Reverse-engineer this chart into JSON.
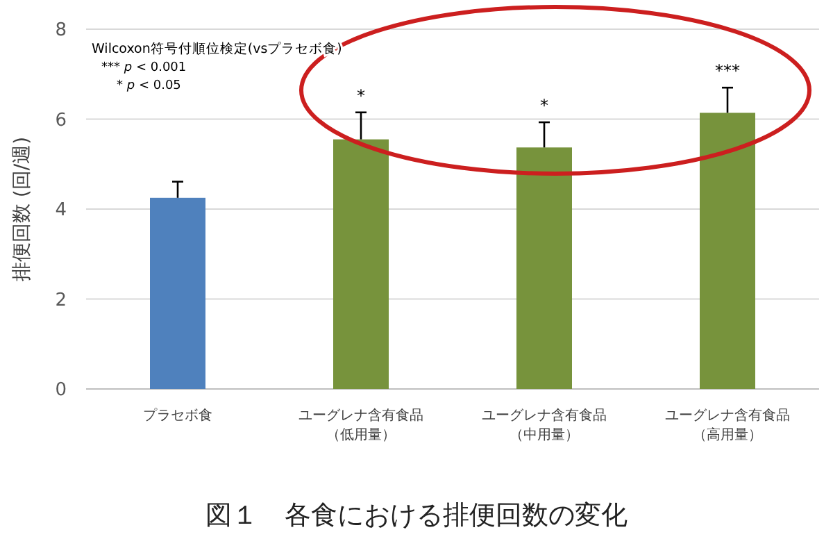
{
  "chart_data": {
    "type": "bar",
    "title": "図１　各食における排便回数の変化",
    "ylabel": "排便回数 (回/週)",
    "categories": [
      "プラセボ食",
      "ユーグレナ含有食品（低用量）",
      "ユーグレナ含有食品（中用量）",
      "ユーグレナ含有食品（高用量）"
    ],
    "values": [
      4.25,
      5.55,
      5.37,
      6.14
    ],
    "colors": [
      "#4f81bd",
      "#77933c",
      "#77933c",
      "#77933c"
    ],
    "errors": [
      0.36,
      0.6,
      0.56,
      0.56
    ],
    "ylim": [
      0,
      8
    ],
    "yticks": [
      0,
      2,
      4,
      6,
      8
    ],
    "grid": "y",
    "annotations": [
      "Wilcoxon符号付順位検定(vsプラセボ食)",
      "*** p < 0.001",
      "* p < 0.05",
      {
        "text": "*",
        "x": "ユーグレナ含有食品（低用量）",
        "y": 6.15
      },
      {
        "text": "*",
        "x": "ユーグレナ含有食品（中用量）",
        "y": 5.93
      },
      {
        "text": "***",
        "x": "ユーグレナ含有食品（高用量）",
        "y": 6.7
      }
    ]
  }
}
